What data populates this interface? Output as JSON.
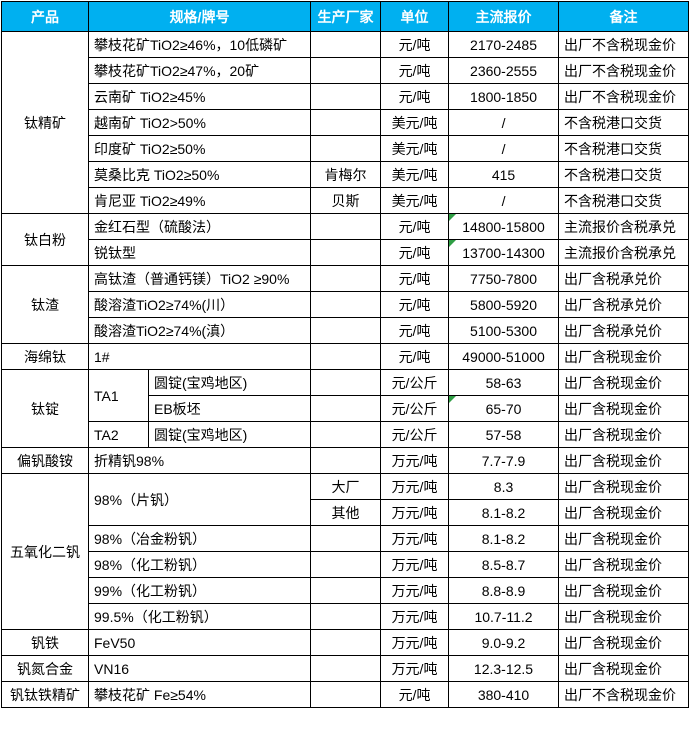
{
  "colors": {
    "header_bg": "#00B0F0",
    "header_text": "#FFFFFF",
    "border": "#000000",
    "cell_text": "#000000",
    "comment_flag_green": "#2F9E44"
  },
  "table": {
    "headers": [
      {
        "key": "product",
        "label": "产品",
        "colspan": 1
      },
      {
        "key": "spec",
        "label": "规格/牌号",
        "colspan": 2
      },
      {
        "key": "maker",
        "label": "生产厂家",
        "colspan": 1
      },
      {
        "key": "unit",
        "label": "单位",
        "colspan": 1
      },
      {
        "key": "price",
        "label": "主流报价",
        "colspan": 1
      },
      {
        "key": "note",
        "label": "备注",
        "colspan": 1
      }
    ],
    "rows": [
      {
        "cells": [
          {
            "k": "product",
            "t": "钛精矿",
            "rs": 7
          },
          {
            "k": "spec",
            "t": "攀枝花矿TiO2≥46%，10低磷矿",
            "cs": 2
          },
          {
            "k": "maker",
            "t": ""
          },
          {
            "k": "unit",
            "t": "元/吨"
          },
          {
            "k": "price",
            "t": "2170-2485"
          },
          {
            "k": "note",
            "t": "出厂不含税现金价"
          }
        ]
      },
      {
        "cells": [
          {
            "k": "spec",
            "t": "攀枝花矿TiO2≥47%，20矿",
            "cs": 2
          },
          {
            "k": "maker",
            "t": ""
          },
          {
            "k": "unit",
            "t": "元/吨"
          },
          {
            "k": "price",
            "t": "2360-2555"
          },
          {
            "k": "note",
            "t": "出厂不含税现金价"
          }
        ]
      },
      {
        "cells": [
          {
            "k": "spec",
            "t": "云南矿 TiO2≥45%",
            "cs": 2
          },
          {
            "k": "maker",
            "t": ""
          },
          {
            "k": "unit",
            "t": "元/吨"
          },
          {
            "k": "price",
            "t": "1800-1850"
          },
          {
            "k": "note",
            "t": "出厂不含税现金价"
          }
        ]
      },
      {
        "cells": [
          {
            "k": "spec",
            "t": "越南矿 TiO2>50%",
            "cs": 2
          },
          {
            "k": "maker",
            "t": ""
          },
          {
            "k": "unit",
            "t": "美元/吨"
          },
          {
            "k": "price",
            "t": "/"
          },
          {
            "k": "note",
            "t": "不含税港口交货"
          }
        ]
      },
      {
        "cells": [
          {
            "k": "spec",
            "t": "印度矿 TiO2≥50%",
            "cs": 2
          },
          {
            "k": "maker",
            "t": ""
          },
          {
            "k": "unit",
            "t": "美元/吨"
          },
          {
            "k": "price",
            "t": "/"
          },
          {
            "k": "note",
            "t": "不含税港口交货"
          }
        ]
      },
      {
        "cells": [
          {
            "k": "spec",
            "t": "莫桑比克 TiO2≥50%",
            "cs": 2
          },
          {
            "k": "maker",
            "t": "肯梅尔"
          },
          {
            "k": "unit",
            "t": "美元/吨"
          },
          {
            "k": "price",
            "t": "415"
          },
          {
            "k": "note",
            "t": "不含税港口交货"
          }
        ]
      },
      {
        "cells": [
          {
            "k": "spec",
            "t": "肯尼亚 TiO2≥49%",
            "cs": 2
          },
          {
            "k": "maker",
            "t": "贝斯"
          },
          {
            "k": "unit",
            "t": "美元/吨"
          },
          {
            "k": "price",
            "t": "/"
          },
          {
            "k": "note",
            "t": "不含税港口交货"
          }
        ]
      },
      {
        "cells": [
          {
            "k": "product",
            "t": "钛白粉",
            "rs": 2
          },
          {
            "k": "spec",
            "t": "金红石型（硫酸法）",
            "cs": 2
          },
          {
            "k": "maker",
            "t": ""
          },
          {
            "k": "unit",
            "t": "元/吨"
          },
          {
            "k": "price",
            "t": "14800-15800",
            "flag": true
          },
          {
            "k": "note",
            "t": "主流报价含税承兑"
          }
        ]
      },
      {
        "cells": [
          {
            "k": "spec",
            "t": "锐钛型",
            "cs": 2
          },
          {
            "k": "maker",
            "t": ""
          },
          {
            "k": "unit",
            "t": "元/吨"
          },
          {
            "k": "price",
            "t": "13700-14300",
            "flag": true
          },
          {
            "k": "note",
            "t": "主流报价含税承兑"
          }
        ]
      },
      {
        "cells": [
          {
            "k": "product",
            "t": "钛渣",
            "rs": 3
          },
          {
            "k": "spec",
            "t": "高钛渣（普通钙镁）TiO2 ≥90%",
            "cs": 2
          },
          {
            "k": "maker",
            "t": ""
          },
          {
            "k": "unit",
            "t": "元/吨"
          },
          {
            "k": "price",
            "t": "7750-7800"
          },
          {
            "k": "note",
            "t": "出厂含税承兑价"
          }
        ]
      },
      {
        "cells": [
          {
            "k": "spec",
            "t": "酸溶渣TiO2≥74%(川）",
            "cs": 2
          },
          {
            "k": "maker",
            "t": ""
          },
          {
            "k": "unit",
            "t": "元/吨"
          },
          {
            "k": "price",
            "t": "5800-5920"
          },
          {
            "k": "note",
            "t": "出厂含税承兑价"
          }
        ]
      },
      {
        "cells": [
          {
            "k": "spec",
            "t": "酸溶渣TiO2≥74%(滇）",
            "cs": 2
          },
          {
            "k": "maker",
            "t": ""
          },
          {
            "k": "unit",
            "t": "元/吨"
          },
          {
            "k": "price",
            "t": "5100-5300"
          },
          {
            "k": "note",
            "t": "出厂含税承兑价"
          }
        ]
      },
      {
        "cells": [
          {
            "k": "product",
            "t": "海绵钛",
            "rs": 1
          },
          {
            "k": "spec",
            "t": "1#",
            "cs": 2
          },
          {
            "k": "maker",
            "t": ""
          },
          {
            "k": "unit",
            "t": "元/吨"
          },
          {
            "k": "price",
            "t": "49000-51000"
          },
          {
            "k": "note",
            "t": "出厂含税现金价"
          }
        ]
      },
      {
        "cells": [
          {
            "k": "product",
            "t": "钛锭",
            "rs": 3
          },
          {
            "k": "grade",
            "t": "TA1",
            "rs": 2
          },
          {
            "k": "type",
            "t": "圆锭(宝鸡地区)"
          },
          {
            "k": "maker",
            "t": ""
          },
          {
            "k": "unit",
            "t": "元/公斤"
          },
          {
            "k": "price",
            "t": "58-63"
          },
          {
            "k": "note",
            "t": "出厂含税现金价"
          }
        ]
      },
      {
        "cells": [
          {
            "k": "type",
            "t": "EB板坯"
          },
          {
            "k": "maker",
            "t": ""
          },
          {
            "k": "unit",
            "t": "元/公斤"
          },
          {
            "k": "price",
            "t": "65-70",
            "flag": true
          },
          {
            "k": "note",
            "t": "出厂含税现金价"
          }
        ]
      },
      {
        "cells": [
          {
            "k": "grade",
            "t": "TA2"
          },
          {
            "k": "type",
            "t": "圆锭(宝鸡地区)"
          },
          {
            "k": "maker",
            "t": ""
          },
          {
            "k": "unit",
            "t": "元/公斤"
          },
          {
            "k": "price",
            "t": "57-58"
          },
          {
            "k": "note",
            "t": "出厂含税现金价"
          }
        ]
      },
      {
        "cells": [
          {
            "k": "product",
            "t": "偏钒酸铵",
            "rs": 1
          },
          {
            "k": "spec",
            "t": "折精钒98%",
            "cs": 2
          },
          {
            "k": "maker",
            "t": ""
          },
          {
            "k": "unit",
            "t": "万元/吨"
          },
          {
            "k": "price",
            "t": "7.7-7.9"
          },
          {
            "k": "note",
            "t": "出厂含税现金价"
          }
        ]
      },
      {
        "cells": [
          {
            "k": "product",
            "t": "五氧化二钒",
            "rs": 6
          },
          {
            "k": "spec",
            "t": "98%（片钒）",
            "cs": 2,
            "rs": 2
          },
          {
            "k": "maker",
            "t": "大厂"
          },
          {
            "k": "unit",
            "t": "万元/吨"
          },
          {
            "k": "price",
            "t": "8.3"
          },
          {
            "k": "note",
            "t": "出厂含税现金价"
          }
        ]
      },
      {
        "cells": [
          {
            "k": "maker",
            "t": "其他"
          },
          {
            "k": "unit",
            "t": "万元/吨"
          },
          {
            "k": "price",
            "t": "8.1-8.2"
          },
          {
            "k": "note",
            "t": "出厂含税现金价"
          }
        ]
      },
      {
        "cells": [
          {
            "k": "spec",
            "t": "98%（冶金粉钒）",
            "cs": 2
          },
          {
            "k": "maker",
            "t": ""
          },
          {
            "k": "unit",
            "t": "万元/吨"
          },
          {
            "k": "price",
            "t": "8.1-8.2"
          },
          {
            "k": "note",
            "t": "出厂含税现金价"
          }
        ]
      },
      {
        "cells": [
          {
            "k": "spec",
            "t": "98%（化工粉钒）",
            "cs": 2
          },
          {
            "k": "maker",
            "t": ""
          },
          {
            "k": "unit",
            "t": "万元/吨"
          },
          {
            "k": "price",
            "t": "8.5-8.7"
          },
          {
            "k": "note",
            "t": "出厂含税现金价"
          }
        ]
      },
      {
        "cells": [
          {
            "k": "spec",
            "t": "99%（化工粉钒）",
            "cs": 2
          },
          {
            "k": "maker",
            "t": ""
          },
          {
            "k": "unit",
            "t": "万元/吨"
          },
          {
            "k": "price",
            "t": "8.8-8.9"
          },
          {
            "k": "note",
            "t": "出厂含税现金价"
          }
        ]
      },
      {
        "cells": [
          {
            "k": "spec",
            "t": "99.5%（化工粉钒）",
            "cs": 2
          },
          {
            "k": "maker",
            "t": ""
          },
          {
            "k": "unit",
            "t": "万元/吨"
          },
          {
            "k": "price",
            "t": "10.7-11.2"
          },
          {
            "k": "note",
            "t": "出厂含税现金价"
          }
        ]
      },
      {
        "cells": [
          {
            "k": "product",
            "t": "钒铁",
            "rs": 1
          },
          {
            "k": "spec",
            "t": "FeV50",
            "cs": 2
          },
          {
            "k": "maker",
            "t": ""
          },
          {
            "k": "unit",
            "t": "万元/吨"
          },
          {
            "k": "price",
            "t": "9.0-9.2"
          },
          {
            "k": "note",
            "t": "出厂含税现金价"
          }
        ]
      },
      {
        "cells": [
          {
            "k": "product",
            "t": "钒氮合金",
            "rs": 1
          },
          {
            "k": "spec",
            "t": "VN16",
            "cs": 2
          },
          {
            "k": "maker",
            "t": ""
          },
          {
            "k": "unit",
            "t": "万元/吨"
          },
          {
            "k": "price",
            "t": "12.3-12.5"
          },
          {
            "k": "note",
            "t": "出厂含税现金价"
          }
        ]
      },
      {
        "cells": [
          {
            "k": "product",
            "t": "钒钛铁精矿",
            "rs": 1
          },
          {
            "k": "spec",
            "t": "攀枝花矿 Fe≥54%",
            "cs": 2
          },
          {
            "k": "maker",
            "t": ""
          },
          {
            "k": "unit",
            "t": "元/吨"
          },
          {
            "k": "price",
            "t": "380-410"
          },
          {
            "k": "note",
            "t": "出厂不含税现金价"
          }
        ]
      }
    ]
  }
}
